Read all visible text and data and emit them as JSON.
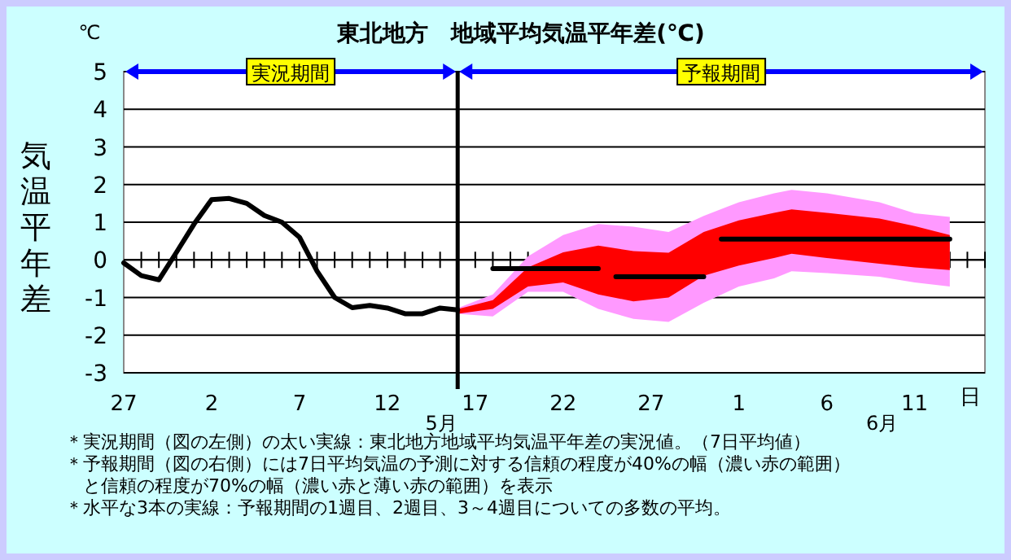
{
  "chart_data": {
    "type": "line",
    "title": "東北地方　地域平均気温平年差(℃)",
    "ylabel": "気温平年差",
    "xlabel": "日",
    "xlim": [
      "--04-27",
      "--06-15"
    ],
    "ylim": [
      -3,
      5
    ],
    "xticks": [
      {
        "value": "--04-27",
        "label": "27"
      },
      {
        "value": "--05-02",
        "label": "2"
      },
      {
        "value": "--05-07",
        "label": "7"
      },
      {
        "value": "--05-12",
        "label": "12"
      },
      {
        "value": "--05-17",
        "label": "17"
      },
      {
        "value": "--05-22",
        "label": "22"
      },
      {
        "value": "--05-27",
        "label": "27"
      },
      {
        "value": "--06-01",
        "label": "1"
      },
      {
        "value": "--06-06",
        "label": "6"
      },
      {
        "value": "--06-11",
        "label": "11"
      }
    ],
    "yticks": [
      -3,
      -2,
      -1,
      0,
      1,
      2,
      3,
      4,
      5
    ],
    "grid": "y",
    "series": [
      {
        "type": "area",
        "color": "#ff99ff",
        "x": [
          "--05-16",
          "--05-18",
          "--05-20",
          "--05-22",
          "--05-24",
          "--05-26",
          "--05-28",
          "--05-30",
          "--06-01",
          "--06-03",
          "--06-04",
          "--06-06",
          "--06-09",
          "--06-11",
          "--06-13"
        ],
        "values": [
          null,
          null,
          null,
          null,
          null,
          null,
          null,
          null,
          null,
          null,
          null,
          null,
          null,
          null,
          null
        ],
        "lower": [
          -1.43,
          -1.5,
          -0.85,
          -0.85,
          -1.3,
          -1.57,
          -1.65,
          -1.14,
          -0.71,
          -0.49,
          -0.3,
          -0.35,
          -0.45,
          -0.6,
          -0.71
        ],
        "upper": [
          -1.28,
          -0.92,
          0.09,
          0.66,
          0.95,
          0.88,
          0.74,
          1.17,
          1.53,
          1.77,
          1.86,
          1.77,
          1.53,
          1.24,
          1.14
        ]
      },
      {
        "type": "area",
        "color": "#ff0000",
        "x": [
          "--05-16",
          "--05-18",
          "--05-20",
          "--05-22",
          "--05-24",
          "--05-26",
          "--05-28",
          "--05-30",
          "--06-01",
          "--06-03",
          "--06-04",
          "--06-06",
          "--06-09",
          "--06-11",
          "--06-13"
        ],
        "values": [
          null,
          null,
          null,
          null,
          null,
          null,
          null,
          null,
          null,
          null,
          null,
          null,
          null,
          null,
          null
        ],
        "lower": [
          -1.43,
          -1.3,
          -0.71,
          -0.6,
          -0.92,
          -1.1,
          -1.0,
          -0.42,
          -0.15,
          0.05,
          0.16,
          0.05,
          -0.1,
          -0.2,
          -0.27
        ],
        "upper": [
          -1.31,
          -1.07,
          -0.2,
          0.2,
          0.38,
          0.23,
          0.19,
          0.74,
          1.05,
          1.25,
          1.34,
          1.25,
          1.1,
          0.9,
          0.66
        ]
      },
      {
        "type": "line",
        "color": "#000000",
        "x": [
          "--04-27",
          "--04-28",
          "--04-29",
          "--04-30",
          "--05-01",
          "--05-02",
          "--05-03",
          "--05-04",
          "--05-05",
          "--05-06",
          "--05-07",
          "--05-08",
          "--05-09",
          "--05-10",
          "--05-11",
          "--05-12",
          "--05-13",
          "--05-14",
          "--05-15",
          "--05-16"
        ],
        "values": [
          -0.08,
          -0.42,
          -0.53,
          0.2,
          0.95,
          1.6,
          1.63,
          1.5,
          1.18,
          1.0,
          0.6,
          -0.3,
          -1.0,
          -1.27,
          -1.21,
          -1.28,
          -1.43,
          -1.43,
          -1.28,
          -1.33
        ]
      },
      {
        "type": "line",
        "color": "#000000",
        "x": [
          "--05-18",
          "--05-24"
        ],
        "values": [
          -0.23,
          -0.23
        ]
      },
      {
        "type": "line",
        "color": "#000000",
        "x": [
          "--05-25",
          "--05-30"
        ],
        "values": [
          -0.45,
          -0.45
        ]
      },
      {
        "type": "line",
        "color": "#000000",
        "x": [
          "--05-31",
          "--06-13"
        ],
        "values": [
          0.55,
          0.55
        ]
      }
    ],
    "ref_lines": [
      {
        "axis": "x",
        "value": "--05-16",
        "color": "#000000"
      }
    ],
    "annotations": [
      "℃",
      "実況期間",
      "予報期間",
      "5月",
      "6月",
      "＊実況期間（図の左側）の太い実線：東北地方地域平均気温平年差の実況値。（7日平均値）",
      "＊予報期間（図の右側）には7日平均気温の予測に対する信頼の程度が40%の幅（濃い赤の範囲）",
      "　と信頼の程度が70%の幅（濃い赤と薄い赤の範囲）を表示",
      "＊水平な3本の実線：予報期間の1週目、2週目、3～4週目についての多数の平均。"
    ]
  }
}
